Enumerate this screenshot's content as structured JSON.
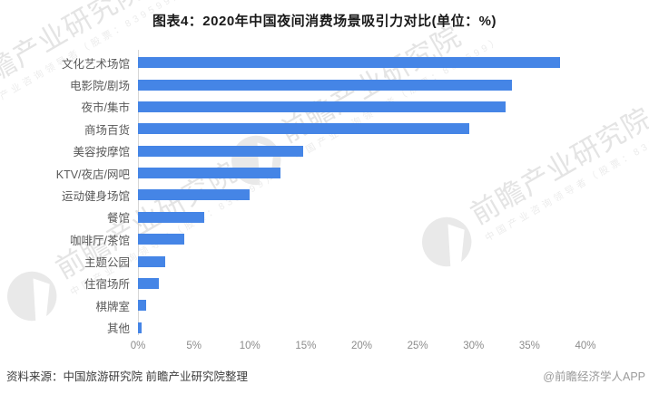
{
  "chart_data": {
    "type": "bar",
    "orientation": "horizontal",
    "title": "图表4：2020年中国夜间消费场景吸引力对比(单位：%)",
    "unit": "%",
    "categories": [
      "文化艺术场馆",
      "电影院/剧场",
      "夜市/集市",
      "商场百货",
      "美容按摩馆",
      "KTV/夜店/网吧",
      "运动健身场馆",
      "餐馆",
      "咖啡厅/茶馆",
      "主题公园",
      "住宿场所",
      "棋牌室",
      "其他"
    ],
    "values": [
      37.7,
      33.4,
      32.9,
      29.6,
      14.8,
      12.7,
      10.0,
      5.9,
      4.1,
      2.4,
      1.9,
      0.7,
      0.3
    ],
    "xlabel": "",
    "ylabel": "",
    "xlim": [
      0,
      40
    ],
    "x_ticks": [
      "0%",
      "5%",
      "10%",
      "15%",
      "20%",
      "25%",
      "30%",
      "35%",
      "40%"
    ],
    "grid": false,
    "legend": false,
    "bar_color": "#4585e6"
  },
  "footer": {
    "source": "资料来源：中国旅游研究院 前瞻产业研究院整理",
    "credit": "@前瞻经济学人APP"
  },
  "watermark": {
    "brand": "前瞻产业研究院",
    "tagline": "中国产业咨询领导者（股票：839599）"
  }
}
